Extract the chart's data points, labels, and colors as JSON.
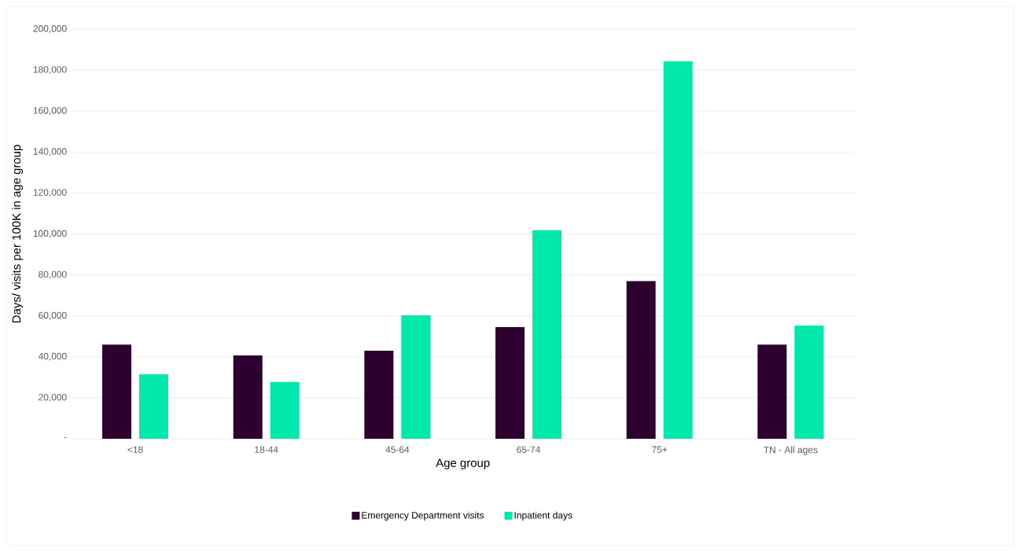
{
  "chart_data": {
    "type": "bar",
    "xlabel": "Age group",
    "ylabel": "Days/ visits per 100K in age group",
    "categories": [
      "<18",
      "18-44",
      "45-64",
      "65-74",
      "75+",
      "TN - All ages"
    ],
    "series": [
      {
        "name": "Emergency Department visits",
        "color": "#2d0030",
        "values": [
          46000,
          40700,
          43000,
          54500,
          77000,
          46000
        ]
      },
      {
        "name": "Inpatient days",
        "color": "#00e8ab",
        "values": [
          31500,
          27700,
          60300,
          101800,
          184300,
          55300
        ]
      }
    ],
    "ylim": [
      0,
      200000
    ],
    "yticks": [
      {
        "value": 0,
        "label": "-"
      },
      {
        "value": 20000,
        "label": "20,000"
      },
      {
        "value": 40000,
        "label": "40,000"
      },
      {
        "value": 60000,
        "label": "60,000"
      },
      {
        "value": 80000,
        "label": "80,000"
      },
      {
        "value": 100000,
        "label": "100,000"
      },
      {
        "value": 120000,
        "label": "120,000"
      },
      {
        "value": 140000,
        "label": "140,000"
      },
      {
        "value": 160000,
        "label": "160,000"
      },
      {
        "value": 180000,
        "label": "180,000"
      },
      {
        "value": 200000,
        "label": "200,000"
      }
    ],
    "grid": "y",
    "legend": "bottom"
  }
}
